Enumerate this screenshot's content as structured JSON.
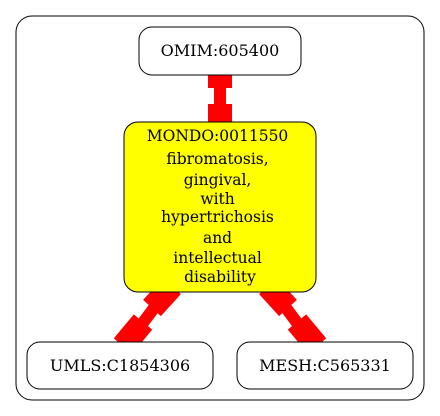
{
  "colors": {
    "center_fill": "#ffff00",
    "node_fill": "#ffffff",
    "edge": "#ff0000",
    "border": "#000000"
  },
  "nodes": {
    "top": {
      "label": "OMIM:605400"
    },
    "center": {
      "lines": [
        "MONDO:0011550",
        "fibromatosis,",
        "gingival,",
        "with",
        "hypertrichosis",
        "and",
        "intellectual",
        "disability"
      ]
    },
    "bottom_left": {
      "label": "UMLS:C1854306"
    },
    "bottom_right": {
      "label": "MESH:C565331"
    }
  }
}
